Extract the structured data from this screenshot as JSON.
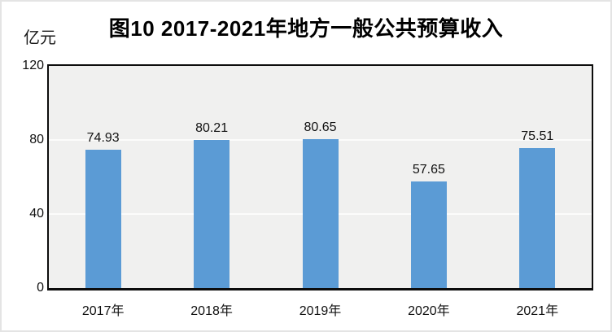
{
  "chart_data": {
    "type": "bar",
    "title": "图10 2017-2021年地方一般公共预算收入",
    "unit_label": "亿元",
    "categories": [
      "2017年",
      "2018年",
      "2019年",
      "2020年",
      "2021年"
    ],
    "values": [
      74.93,
      80.21,
      80.65,
      57.65,
      75.51
    ],
    "value_labels": [
      "74.93",
      "80.21",
      "80.65",
      "57.65",
      "75.51"
    ],
    "xlabel": "",
    "ylabel": "亿元",
    "ylim": [
      0,
      120
    ],
    "yticks": [
      0,
      40,
      80,
      120
    ],
    "gridline_values": [
      40,
      80
    ],
    "grid": true,
    "legend_position": "none",
    "bar_color": "#5b9bd5",
    "plot_background": "#f0f0ef",
    "gridline_color": "#fcfcfb",
    "border_color": "#0d0d0d"
  }
}
